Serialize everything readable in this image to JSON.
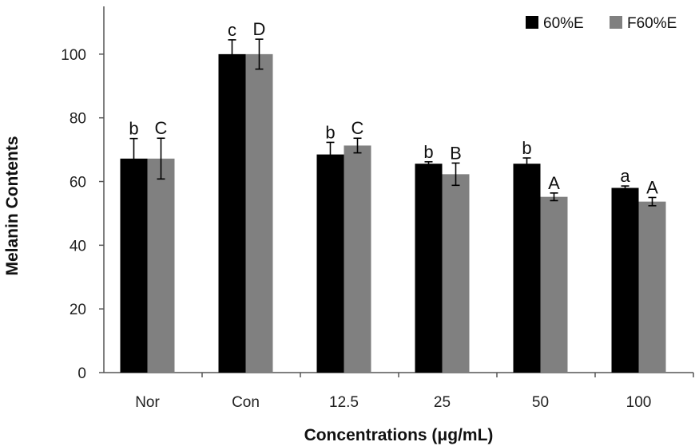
{
  "chart_data": {
    "type": "bar",
    "title": "",
    "xlabel": "Concentrations (μg/mL)",
    "ylabel": "Melanin Contents",
    "ylim": [
      0,
      115
    ],
    "yticks": [
      0,
      20,
      40,
      60,
      80,
      100
    ],
    "categories": [
      "Nor",
      "Con",
      "12.5",
      "25",
      "50",
      "100"
    ],
    "legend_position": "top-right",
    "series": [
      {
        "name": "60%E",
        "color": "#000000",
        "values": [
          67.2,
          100,
          68.5,
          65.6,
          65.6,
          58.0
        ],
        "errors": [
          6.3,
          4.5,
          3.8,
          0.6,
          1.8,
          0.6
        ],
        "labels": [
          "b",
          "c",
          "b",
          "b",
          "b",
          "a"
        ]
      },
      {
        "name": "F60%E",
        "color": "#808080",
        "values": [
          67.2,
          100,
          71.3,
          62.3,
          55.2,
          53.7
        ],
        "errors": [
          6.4,
          4.7,
          2.3,
          3.5,
          1.2,
          1.3
        ],
        "labels": [
          "C",
          "D",
          "C",
          "B",
          "A",
          "A"
        ]
      }
    ]
  }
}
